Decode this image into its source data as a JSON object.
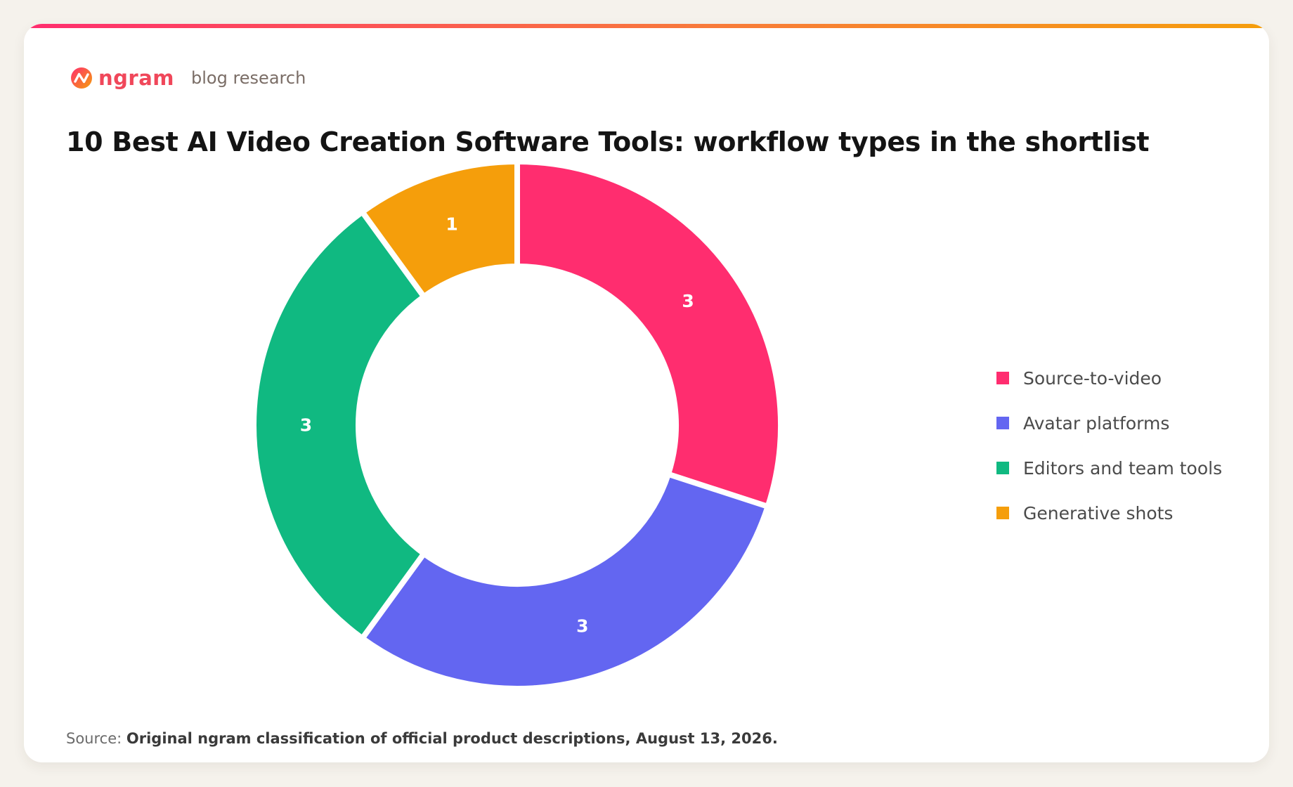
{
  "header": {
    "logo_text": "ngram",
    "logo_sub": "blog research",
    "logo_colors": [
      "#ff2d6f",
      "#f59e0b"
    ]
  },
  "colors": {
    "background": "#f5f2ec",
    "card": "#ffffff",
    "accent_gradient": [
      "#ff2d6f",
      "#f87a3a",
      "#f59e0b"
    ]
  },
  "chart_data": {
    "type": "pie",
    "title": "10 Best AI Video Creation Software Tools: workflow types in the shortlist",
    "donut": true,
    "legend_position": "right",
    "labels": [
      "Source-to-video",
      "Avatar platforms",
      "Editors and team tools",
      "Generative shots"
    ],
    "values": [
      3,
      3,
      3,
      1
    ],
    "colors": [
      "#ff2d6f",
      "#6366f1",
      "#10b981",
      "#f59e0b"
    ]
  },
  "footer": {
    "source_label": "Source:",
    "source_text": "Original ngram classification of official product descriptions, August 13, 2026."
  }
}
